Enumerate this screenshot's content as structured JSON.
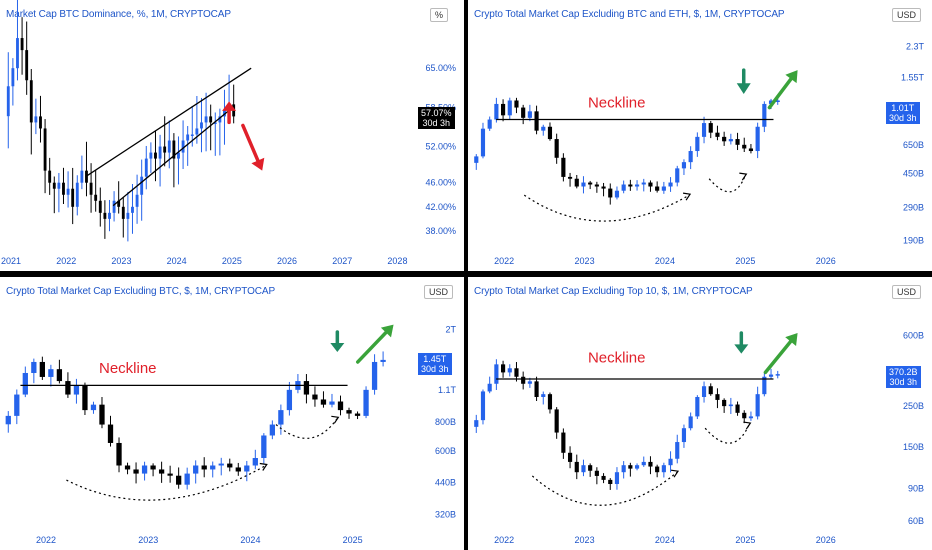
{
  "colors": {
    "up": "#2563eb",
    "down": "#000000",
    "title": "#1e55c8",
    "axis": "#1e55c8",
    "neckline": "#e0202a",
    "arrow_green": "#3aa33a",
    "arrow_teal": "#1f8a63",
    "arrow_red": "#e0202a"
  },
  "chart_data": [
    {
      "type": "candlestick",
      "title": "Market Cap BTC Dominance, %, 1M, CRYPTOCAP",
      "unit": "%",
      "scale": "linear",
      "ylim": [
        35,
        72
      ],
      "xlim": [
        2020.8,
        2028.3
      ],
      "x_ticks": [
        "2021",
        "2022",
        "2023",
        "2024",
        "2025",
        "2026",
        "2027",
        "2028"
      ],
      "y_ticks": [
        {
          "v": 65,
          "label": "65.00%"
        },
        {
          "v": 58.5,
          "label": "58.50%"
        },
        {
          "v": 52,
          "label": "52.00%"
        },
        {
          "v": 46,
          "label": "46.00%"
        },
        {
          "v": 42,
          "label": "42.00%"
        },
        {
          "v": 38,
          "label": "38.00%"
        }
      ],
      "price_tag": {
        "value": 57.07,
        "label": "57.07%",
        "countdown": "30d 3h",
        "color": "#000000"
      },
      "closes": [
        62,
        65,
        70,
        68,
        63,
        56,
        57,
        55,
        48,
        46,
        45,
        46,
        44,
        45,
        42,
        46,
        48,
        46,
        44,
        43,
        41,
        40,
        41,
        43,
        42,
        40,
        41,
        42,
        44,
        47,
        50,
        51,
        50,
        52,
        51,
        53,
        50,
        51,
        53,
        54,
        54,
        55,
        56,
        57,
        56,
        56,
        57,
        58,
        59,
        57
      ],
      "annotations": [
        {
          "type": "wedge",
          "lines": [
            [
              2022.35,
              47,
              2025.35,
              65
            ],
            [
              2022.85,
              42.2,
              2024.95,
              58
            ]
          ]
        },
        {
          "type": "arrow",
          "color": "arrow_red",
          "from": [
            2024.95,
            56
          ],
          "to": [
            2024.95,
            59.5
          ]
        },
        {
          "type": "arrow",
          "color": "arrow_red",
          "from": [
            2025.2,
            55.5
          ],
          "to": [
            2025.55,
            48
          ]
        }
      ]
    },
    {
      "type": "candlestick",
      "title": "Crypto Total Market Cap Excluding BTC and ETH, $, 1M, CRYPTOCAP",
      "unit": "USD",
      "scale": "log",
      "ylim": [
        170,
        3000
      ],
      "xlim": [
        2021.55,
        2026.7
      ],
      "x_ticks": [
        "2022",
        "2023",
        "2024",
        "2025",
        "2026"
      ],
      "y_ticks": [
        {
          "v": 2300,
          "label": "2.3T"
        },
        {
          "v": 1550,
          "label": "1.55T"
        },
        {
          "v": 1010,
          "label": "1.01T"
        },
        {
          "v": 650,
          "label": "650B"
        },
        {
          "v": 450,
          "label": "450B"
        },
        {
          "v": 290,
          "label": "290B"
        },
        {
          "v": 190,
          "label": "190B"
        }
      ],
      "price_tag": {
        "value": 1010,
        "label": "1.01T",
        "countdown": "30d 3h",
        "color": "#2563eb"
      },
      "closes": [
        560,
        800,
        900,
        1100,
        950,
        1150,
        1050,
        920,
        1000,
        780,
        820,
        700,
        550,
        430,
        420,
        380,
        400,
        390,
        380,
        370,
        330,
        360,
        390,
        380,
        390,
        400,
        380,
        360,
        380,
        400,
        480,
        520,
        600,
        720,
        860,
        760,
        720,
        680,
        700,
        650,
        620,
        600,
        820,
        1100,
        1150,
        1150
      ],
      "labels": [
        {
          "text": "Neckline",
          "x": 2023.4,
          "y": 1050
        }
      ],
      "annotations": [
        {
          "type": "hline",
          "y": 900,
          "x0": 2021.9,
          "x1": 2025.35
        },
        {
          "type": "curve",
          "points": [
            [
              2022.25,
              340
            ],
            [
              2023.2,
              220
            ],
            [
              2024.3,
              340
            ]
          ]
        },
        {
          "type": "curve",
          "points": [
            [
              2024.55,
              420
            ],
            [
              2024.85,
              370
            ],
            [
              2025.0,
              440
            ]
          ]
        },
        {
          "type": "arrow",
          "color": "arrow_teal",
          "from": [
            2024.98,
            1700
          ],
          "to": [
            2024.98,
            1250
          ]
        },
        {
          "type": "arrow",
          "color": "arrow_green",
          "from": [
            2025.3,
            1050
          ],
          "to": [
            2025.65,
            1700
          ]
        }
      ]
    },
    {
      "type": "candlestick",
      "title": "Crypto Total Market Cap Excluding BTC, $, 1M, CRYPTOCAP",
      "unit": "USD",
      "scale": "log",
      "ylim": [
        280,
        2600
      ],
      "xlim": [
        2021.55,
        2025.6
      ],
      "x_ticks": [
        "2022",
        "2023",
        "2024",
        "2025"
      ],
      "y_ticks": [
        {
          "v": 2000,
          "label": "2T"
        },
        {
          "v": 1450,
          "label": "1.45T"
        },
        {
          "v": 1100,
          "label": "1.1T"
        },
        {
          "v": 800,
          "label": "800B"
        },
        {
          "v": 600,
          "label": "600B"
        },
        {
          "v": 440,
          "label": "440B"
        },
        {
          "v": 320,
          "label": "320B"
        }
      ],
      "price_tag": {
        "value": 1450,
        "label": "1.45T",
        "countdown": "30d 3h",
        "color": "#2563eb"
      },
      "closes": [
        850,
        1050,
        1300,
        1450,
        1250,
        1350,
        1200,
        1050,
        1150,
        900,
        950,
        780,
        650,
        520,
        500,
        480,
        520,
        500,
        480,
        470,
        430,
        480,
        520,
        500,
        520,
        530,
        510,
        490,
        520,
        560,
        700,
        780,
        900,
        1100,
        1200,
        1050,
        1000,
        950,
        980,
        900,
        870,
        850,
        1100,
        1450,
        1480
      ],
      "labels": [
        {
          "text": "Neckline",
          "x": 2022.8,
          "y": 1300
        }
      ],
      "annotations": [
        {
          "type": "hline",
          "y": 1150,
          "x0": 2021.75,
          "x1": 2024.95
        },
        {
          "type": "curve",
          "points": [
            [
              2022.2,
              450
            ],
            [
              2023.1,
              340
            ],
            [
              2024.15,
              520
            ]
          ]
        },
        {
          "type": "curve",
          "points": [
            [
              2024.25,
              780
            ],
            [
              2024.6,
              690
            ],
            [
              2024.85,
              830
            ]
          ]
        },
        {
          "type": "arrow",
          "color": "arrow_teal",
          "from": [
            2024.85,
            1950
          ],
          "to": [
            2024.85,
            1600
          ]
        },
        {
          "type": "arrow",
          "color": "arrow_green",
          "from": [
            2025.05,
            1450
          ],
          "to": [
            2025.4,
            2100
          ]
        }
      ]
    },
    {
      "type": "candlestick",
      "title": "Crypto Total Market Cap Excluding Top 10, $, 1M, CRYPTOCAP",
      "unit": "USD",
      "scale": "log",
      "ylim": [
        55,
        900
      ],
      "xlim": [
        2021.55,
        2026.7
      ],
      "x_ticks": [
        "2022",
        "2023",
        "2024",
        "2025",
        "2026"
      ],
      "y_ticks": [
        {
          "v": 600,
          "label": "600B"
        },
        {
          "v": 370.2,
          "label": "370.2B"
        },
        {
          "v": 250,
          "label": "250B"
        },
        {
          "v": 150,
          "label": "150B"
        },
        {
          "v": 90,
          "label": "90B"
        },
        {
          "v": 60,
          "label": "60B"
        }
      ],
      "price_tag": {
        "value": 370.2,
        "label": "370.2B",
        "countdown": "30d 3h",
        "color": "#2563eb"
      },
      "closes": [
        210,
        300,
        330,
        420,
        380,
        400,
        360,
        330,
        340,
        280,
        290,
        240,
        180,
        140,
        125,
        110,
        120,
        112,
        105,
        100,
        95,
        110,
        120,
        115,
        120,
        125,
        118,
        110,
        120,
        130,
        160,
        190,
        220,
        280,
        320,
        290,
        270,
        250,
        255,
        230,
        215,
        220,
        290,
        360,
        370,
        372
      ],
      "labels": [
        {
          "text": "Neckline",
          "x": 2023.4,
          "y": 430
        }
      ],
      "annotations": [
        {
          "type": "hline",
          "y": 350,
          "x0": 2021.9,
          "x1": 2025.35
        },
        {
          "type": "curve",
          "points": [
            [
              2022.35,
              105
            ],
            [
              2023.2,
              62
            ],
            [
              2024.15,
              110
            ]
          ]
        },
        {
          "type": "curve",
          "points": [
            [
              2024.5,
              190
            ],
            [
              2024.85,
              160
            ],
            [
              2025.05,
              200
            ]
          ]
        },
        {
          "type": "arrow",
          "color": "arrow_teal",
          "from": [
            2024.95,
            620
          ],
          "to": [
            2024.95,
            480
          ]
        },
        {
          "type": "arrow",
          "color": "arrow_green",
          "from": [
            2025.25,
            380
          ],
          "to": [
            2025.65,
            620
          ]
        }
      ]
    }
  ]
}
